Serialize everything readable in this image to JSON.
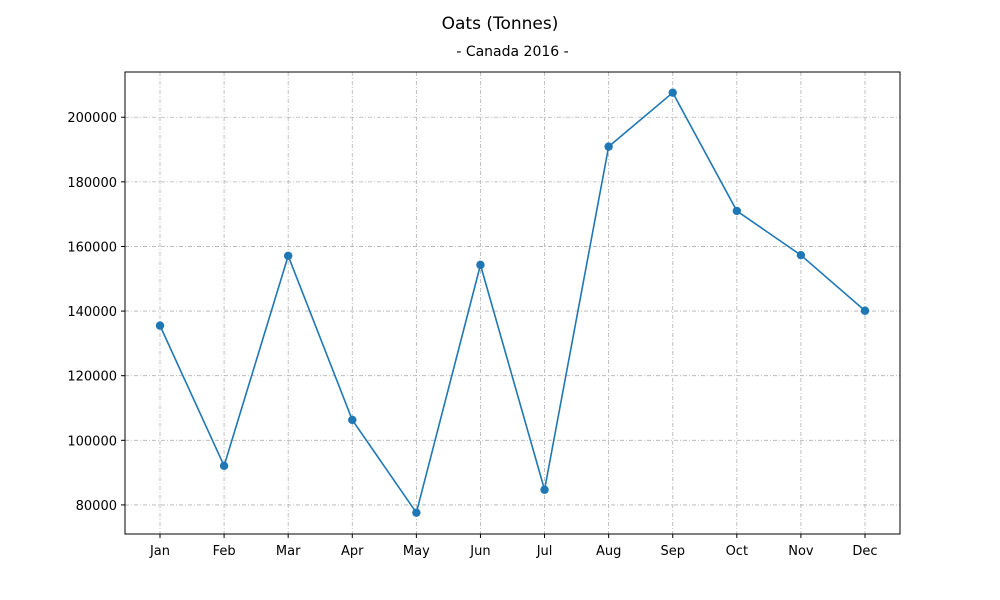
{
  "chart_data": {
    "type": "line",
    "title": "Oats (Tonnes)",
    "subtitle": "- Canada 2016 -",
    "xlabel": "",
    "ylabel": "",
    "categories": [
      "Jan",
      "Feb",
      "Mar",
      "Apr",
      "May",
      "Jun",
      "Jul",
      "Aug",
      "Sep",
      "Oct",
      "Nov",
      "Dec"
    ],
    "series": [
      {
        "values": [
          135500,
          92100,
          157100,
          106300,
          77600,
          154300,
          84700,
          190900,
          207600,
          171000,
          157300,
          140100
        ]
      }
    ],
    "ylim": [
      71000,
      214000
    ],
    "yticks": [
      80000,
      100000,
      120000,
      140000,
      160000,
      180000,
      200000
    ],
    "grid": true,
    "colors": {
      "line": "#1f77b4",
      "marker": "#1f77b4",
      "grid": "#b0b0b0"
    }
  }
}
